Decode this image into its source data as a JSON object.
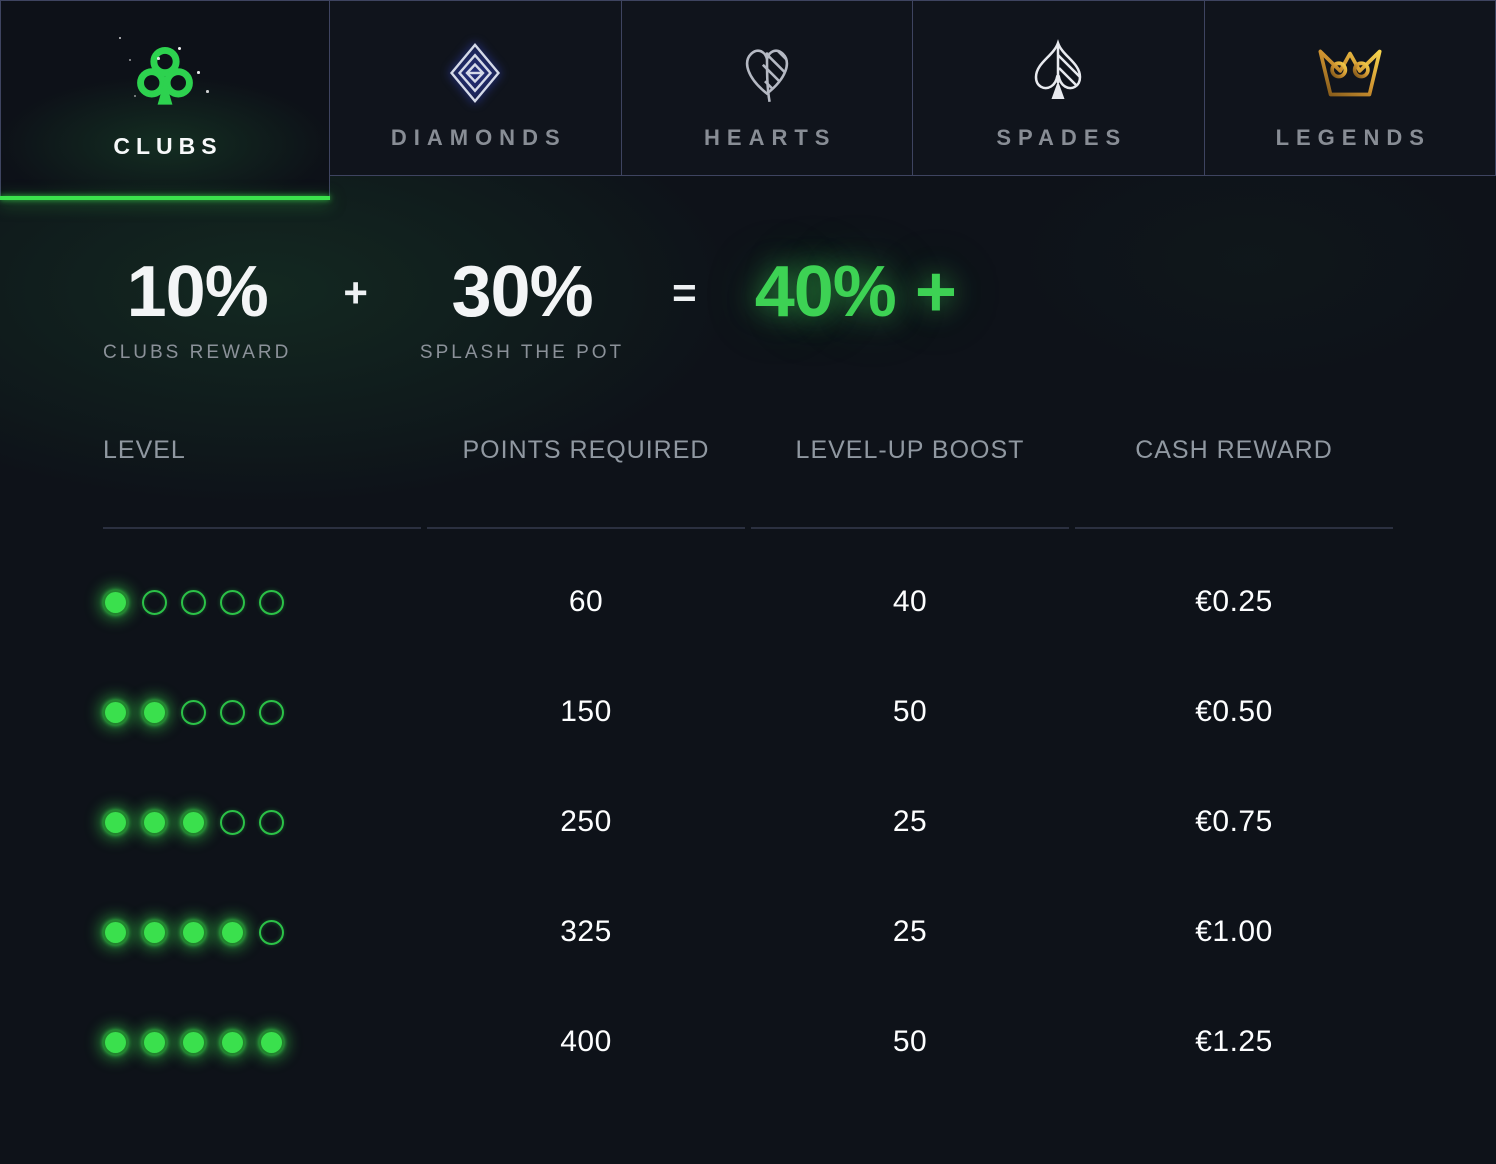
{
  "tabs": [
    {
      "id": "clubs",
      "label": "CLUBS",
      "active": true,
      "icon": "clubs-icon"
    },
    {
      "id": "diamonds",
      "label": "DIAMONDS",
      "active": false,
      "icon": "diamonds-icon"
    },
    {
      "id": "hearts",
      "label": "HEARTS",
      "active": false,
      "icon": "hearts-icon"
    },
    {
      "id": "spades",
      "label": "SPADES",
      "active": false,
      "icon": "spades-icon"
    },
    {
      "id": "legends",
      "label": "LEGENDS",
      "active": false,
      "icon": "legends-icon"
    }
  ],
  "formula": {
    "left_value": "10%",
    "left_label": "CLUBS REWARD",
    "plus_sign": "+",
    "mid_value": "30%",
    "mid_label": "SPLASH THE POT",
    "equals_sign": "=",
    "result_value": "40% +"
  },
  "table": {
    "headers": [
      "LEVEL",
      "POINTS REQUIRED",
      "LEVEL-UP BOOST",
      "CASH REWARD"
    ],
    "max_level_dots": 5,
    "rows": [
      {
        "level": 1,
        "points": "60",
        "boost": "40",
        "cash": "€0.25"
      },
      {
        "level": 2,
        "points": "150",
        "boost": "50",
        "cash": "€0.50"
      },
      {
        "level": 3,
        "points": "250",
        "boost": "25",
        "cash": "€0.75"
      },
      {
        "level": 4,
        "points": "325",
        "boost": "25",
        "cash": "€1.00"
      },
      {
        "level": 5,
        "points": "400",
        "boost": "50",
        "cash": "€1.25"
      }
    ]
  },
  "colors": {
    "background": "#0e1219",
    "tab_background": "#10141c",
    "tab_border": "#3e4460",
    "accent_green": "#3ae04d",
    "result_green": "#3dd254",
    "gray_text": "#8b9199",
    "white_text": "#f3f5f6",
    "diamond_glow_blue": "#3c50f0",
    "crown_gold": "#e9b93e"
  }
}
